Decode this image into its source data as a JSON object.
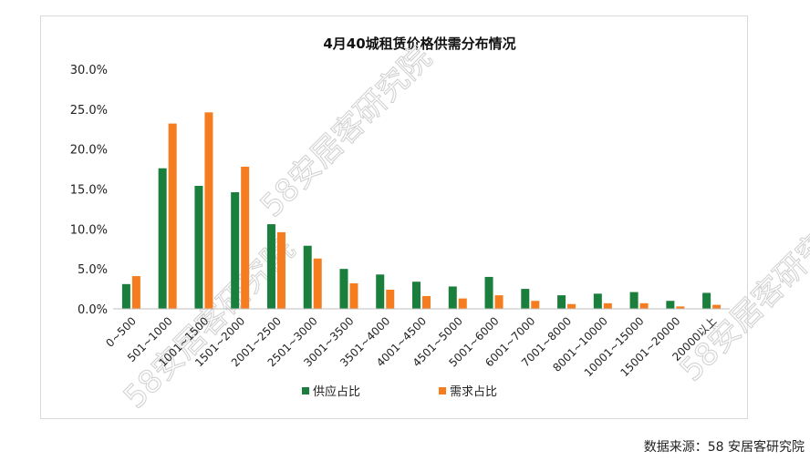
{
  "source_text": "数据来源：58 安居客研究院",
  "watermark_text": "58安居客研究院",
  "colors": {
    "supply": "#1a7f3c",
    "demand": "#f57c1f",
    "axis": "#bfbfbf"
  },
  "chart_data": {
    "type": "bar",
    "title": "4月40城租赁价格供需分布情况",
    "xlabel": "",
    "ylabel": "",
    "ylim": [
      0,
      30
    ],
    "yticks": [
      "0.0%",
      "5.0%",
      "10.0%",
      "15.0%",
      "20.0%",
      "25.0%",
      "30.0%"
    ],
    "grid": false,
    "legend_position": "bottom",
    "categories": [
      "0~500",
      "501~1000",
      "1001~1500",
      "1501~2000",
      "2001~2500",
      "2501~3000",
      "3001~3500",
      "3501~4000",
      "4001~4500",
      "4501~5000",
      "5001~6000",
      "6001~7000",
      "7001~8000",
      "8001~10000",
      "10001~15000",
      "15001~20000",
      "20000以上"
    ],
    "series": [
      {
        "name": "供应占比",
        "values": [
          3.1,
          17.6,
          15.4,
          14.6,
          10.6,
          7.9,
          5.0,
          4.3,
          3.4,
          2.8,
          4.0,
          2.5,
          1.7,
          1.9,
          2.1,
          1.0,
          2.0
        ]
      },
      {
        "name": "需求占比",
        "values": [
          4.1,
          23.2,
          24.6,
          17.8,
          9.6,
          6.3,
          3.2,
          2.4,
          1.6,
          1.3,
          1.7,
          1.0,
          0.6,
          0.7,
          0.7,
          0.3,
          0.5
        ]
      }
    ]
  }
}
